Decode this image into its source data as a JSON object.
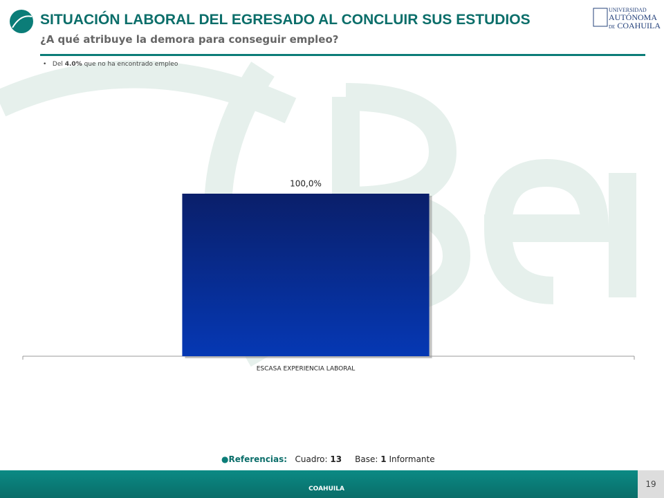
{
  "header": {
    "title": "SITUACIÓN LABORAL DEL EGRESADO AL CONCLUIR SUS ESTUDIOS",
    "subtitle": "¿A qué atribuye la demora para conseguir empleo?",
    "logo_text": [
      "UNIVERSIDAD",
      "AUTÓNOMA",
      "DE",
      "COAHUILA"
    ]
  },
  "note": {
    "prefix": "Del",
    "highlight": "4.0%",
    "suffix": "que no ha encontrado empleo"
  },
  "chart_data": {
    "type": "bar",
    "categories": [
      "ESCASA EXPERIENCIA LABORAL"
    ],
    "values": [
      100
    ],
    "value_labels": [
      "100,0%"
    ],
    "color": "#0538b4",
    "ylim": [
      0,
      100
    ]
  },
  "references": {
    "label": "Referencias:",
    "table_label": "Cuadro:",
    "table_number": "13",
    "base_label": "Base:",
    "base_value": "1",
    "base_unit": "Informante"
  },
  "footer": {
    "text": "COAHUILA",
    "page": "19"
  }
}
